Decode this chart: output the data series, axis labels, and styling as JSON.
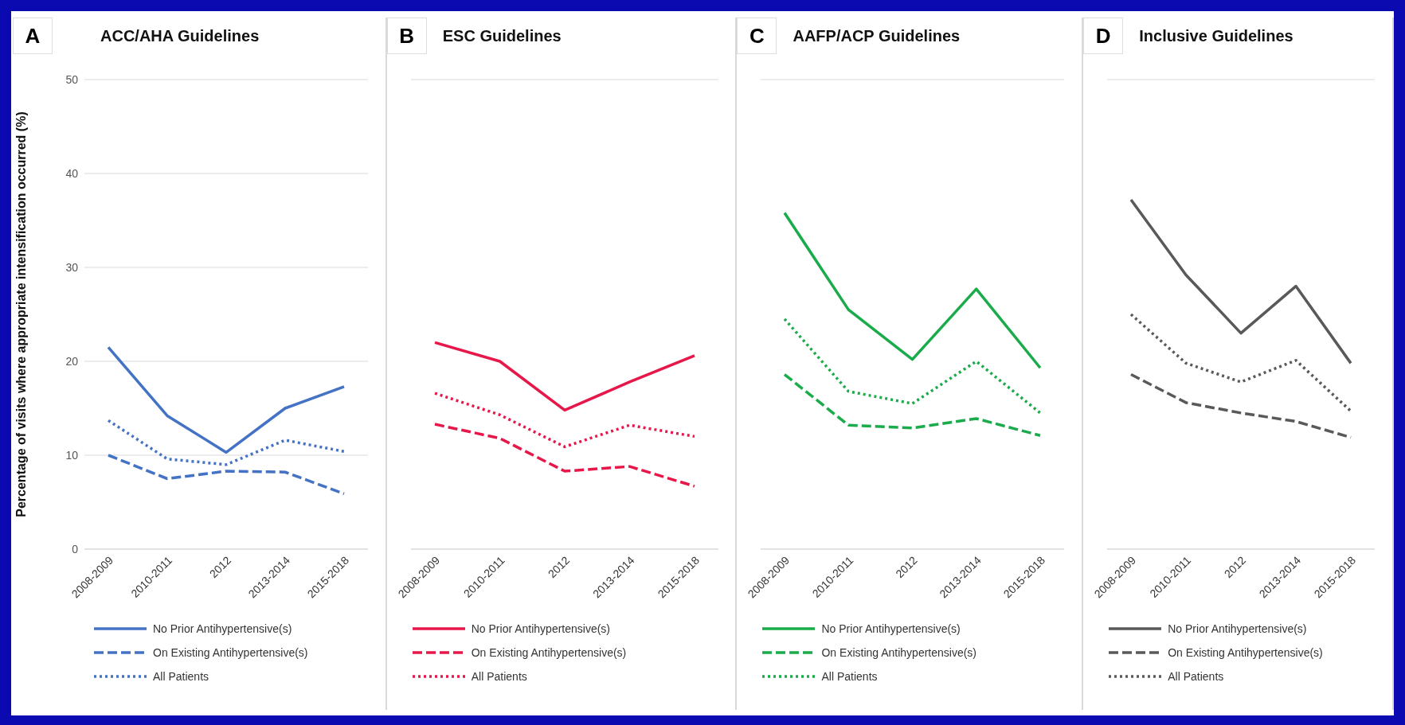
{
  "chart_data": [
    {
      "type": "line",
      "title": "ACC/AHA Guidelines",
      "annotations": [
        "A"
      ],
      "ylabel": "Percentage of visits where appropriate intensification occurred (%)",
      "categories": [
        "2008-2009",
        "2010-2011",
        "2012",
        "2013-2014",
        "2015-2018"
      ],
      "ylim": [
        0,
        50
      ],
      "yticks": [
        0,
        10,
        20,
        30,
        40,
        50
      ],
      "grid": "y",
      "legend": "bottom",
      "marker": "none",
      "series": [
        {
          "name": "No Prior Antihypertensive(s)",
          "color": "#4472c4",
          "line_style": "solid",
          "values": [
            21.5,
            14.2,
            10.3,
            15,
            17.3
          ]
        },
        {
          "name": "On Existing Antihypertensive(s)",
          "color": "#4472c4",
          "line_style": "dashed",
          "values": [
            10,
            7.5,
            8.3,
            8.2,
            5.9
          ]
        },
        {
          "name": "All Patients",
          "color": "#4472c4",
          "line_style": "dotted",
          "values": [
            13.7,
            9.6,
            9,
            11.6,
            10.4
          ]
        }
      ]
    },
    {
      "type": "line",
      "title": "ESC Guidelines",
      "annotations": [
        "B"
      ],
      "categories": [
        "2008-2009",
        "2010-2011",
        "2012",
        "2013-2014",
        "2015-2018"
      ],
      "ylim": [
        0,
        50
      ],
      "yticks": [
        0,
        10,
        20,
        30,
        40,
        50
      ],
      "tick_labels": "x",
      "grid": "y",
      "legend": "bottom",
      "marker": "none",
      "series": [
        {
          "name": "No Prior Antihypertensive(s)",
          "color": "#e8174a",
          "line_style": "solid",
          "values": [
            22,
            20,
            14.8,
            17.8,
            20.6
          ]
        },
        {
          "name": "On Existing Antihypertensive(s)",
          "color": "#e8174a",
          "line_style": "dashed",
          "values": [
            13.3,
            11.8,
            8.3,
            8.8,
            6.7
          ]
        },
        {
          "name": "All Patients",
          "color": "#e8174a",
          "line_style": "dotted",
          "values": [
            16.6,
            14.3,
            10.9,
            13.2,
            12
          ]
        }
      ]
    },
    {
      "type": "line",
      "title": "AAFP/ACP Guidelines",
      "annotations": [
        "C"
      ],
      "categories": [
        "2008-2009",
        "2010-2011",
        "2012",
        "2013-2014",
        "2015-2018"
      ],
      "ylim": [
        0,
        50
      ],
      "yticks": [
        0,
        10,
        20,
        30,
        40,
        50
      ],
      "tick_labels": "x",
      "grid": "y",
      "legend": "bottom",
      "marker": "none",
      "series": [
        {
          "name": "No Prior Antihypertensive(s)",
          "color": "#1aab4a",
          "line_style": "solid",
          "values": [
            35.8,
            25.5,
            20.2,
            27.7,
            19.3
          ]
        },
        {
          "name": "On Existing Antihypertensive(s)",
          "color": "#1aab4a",
          "line_style": "dashed",
          "values": [
            18.6,
            13.2,
            12.9,
            13.9,
            12.1
          ]
        },
        {
          "name": "All Patients",
          "color": "#1aab4a",
          "line_style": "dotted",
          "values": [
            24.5,
            16.8,
            15.5,
            20,
            14.5
          ]
        }
      ]
    },
    {
      "type": "line",
      "title": "Inclusive Guidelines",
      "annotations": [
        "D"
      ],
      "categories": [
        "2008-2009",
        "2010-2011",
        "2012",
        "2013-2014",
        "2015-2018"
      ],
      "ylim": [
        0,
        50
      ],
      "yticks": [
        0,
        10,
        20,
        30,
        40,
        50
      ],
      "tick_labels": "x",
      "grid": "y",
      "legend": "bottom",
      "marker": "none",
      "series": [
        {
          "name": "No Prior Antihypertensive(s)",
          "color": "#595959",
          "line_style": "solid",
          "values": [
            37.2,
            29.2,
            23,
            28,
            19.8
          ]
        },
        {
          "name": "On Existing Antihypertensive(s)",
          "color": "#595959",
          "line_style": "dashed",
          "values": [
            18.6,
            15.6,
            14.5,
            13.6,
            11.9
          ]
        },
        {
          "name": "All Patients",
          "color": "#595959",
          "line_style": "dotted",
          "values": [
            25,
            19.8,
            17.8,
            20.1,
            14.7
          ]
        }
      ]
    }
  ]
}
